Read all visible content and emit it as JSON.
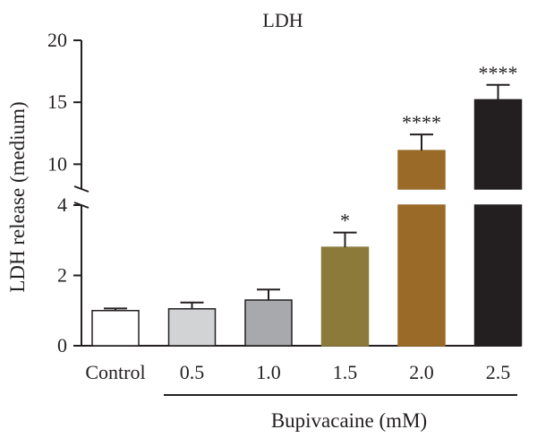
{
  "chart_data": {
    "type": "bar",
    "title": "LDH",
    "ylabel": "LDH release (medium)",
    "xlabel": "",
    "group_label": "Bupivacaine (mM)",
    "categories": [
      "Control",
      "0.5",
      "1.0",
      "1.5",
      "2.0",
      "2.5"
    ],
    "values": [
      1.0,
      1.05,
      1.3,
      2.8,
      11.1,
      15.2
    ],
    "errors": [
      0.06,
      0.18,
      0.3,
      0.42,
      1.3,
      1.2
    ],
    "significance": [
      "",
      "",
      "",
      "*",
      "****",
      "****"
    ],
    "colors": [
      "#ffffff",
      "#d2d3d5",
      "#a7a9ac",
      "#8c7a3a",
      "#9a6a28",
      "#231f20"
    ],
    "y_axis_broken": true,
    "ylim_lower": [
      0,
      4
    ],
    "ylim_upper": [
      8,
      20
    ],
    "yticks_lower": [
      "0",
      "2",
      "4"
    ],
    "yticks_upper": [
      "10",
      "15",
      "20"
    ],
    "grid": false
  }
}
